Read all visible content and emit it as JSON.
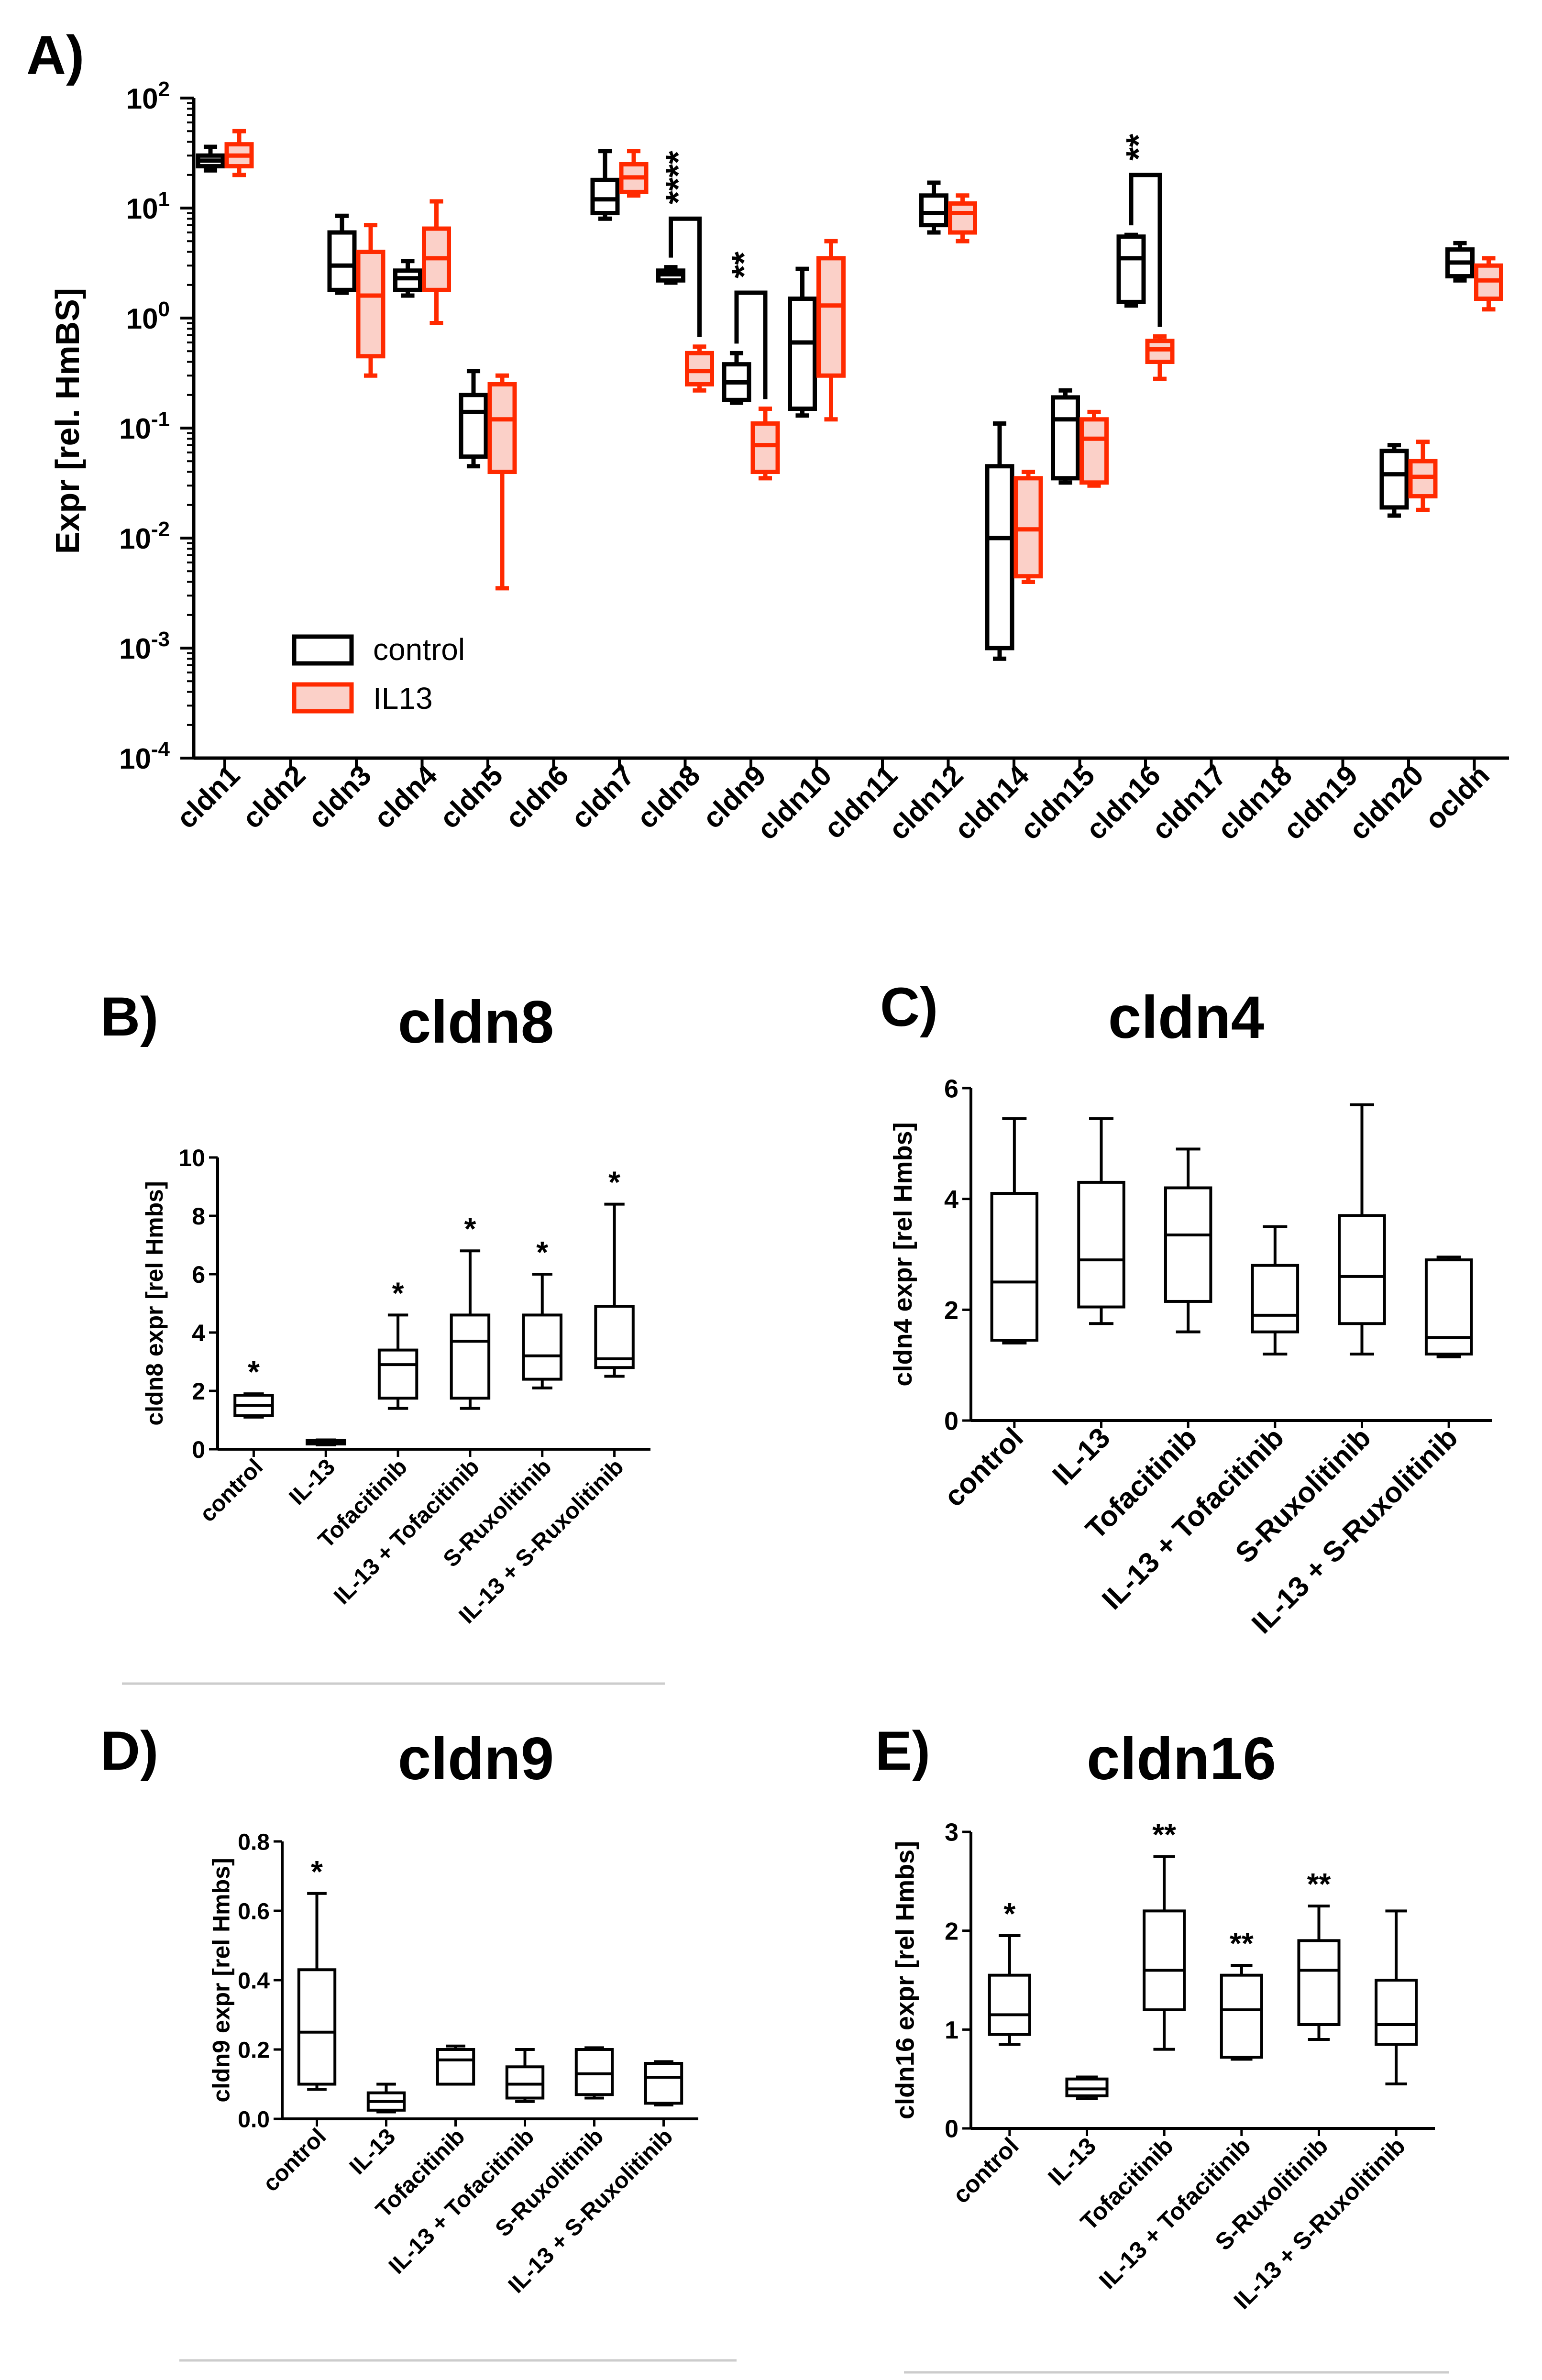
{
  "figure": {
    "background": "#ffffff"
  },
  "chart_data": [
    {
      "id": "A",
      "panel_label": "A)",
      "type": "box",
      "title": "",
      "ylabel": "Expr [rel. HmBS]",
      "yscale": "log",
      "ylim": [
        0.0001,
        100
      ],
      "yticks": [
        {
          "value": 100,
          "base": "10",
          "exp": "2"
        },
        {
          "value": 10,
          "base": "10",
          "exp": "1"
        },
        {
          "value": 1,
          "base": "10",
          "exp": "0"
        },
        {
          "value": 0.1,
          "base": "10",
          "exp": "-1"
        },
        {
          "value": 0.01,
          "base": "10",
          "exp": "-2"
        },
        {
          "value": 0.001,
          "base": "10",
          "exp": "-3"
        },
        {
          "value": 0.0001,
          "base": "10",
          "exp": "-4"
        }
      ],
      "categories": [
        "cldn1",
        "cldn2",
        "cldn3",
        "cldn4",
        "cldn5",
        "cldn6",
        "cldn7",
        "cldn8",
        "cldn9",
        "cldn10",
        "cldn11",
        "cldn12",
        "cldn14",
        "cldn15",
        "cldn16",
        "cldn17",
        "cldn18",
        "cldn19",
        "cldn20",
        "ocldn"
      ],
      "legend": {
        "position": "bottom-left",
        "entries": [
          {
            "name": "control",
            "stroke": "#000000",
            "fill": "#ffffff"
          },
          {
            "name": "IL13",
            "stroke": "#ff2a00",
            "fill": "#fbd0c8"
          }
        ]
      },
      "series": [
        {
          "name": "control",
          "stroke": "#000000",
          "fill": "#ffffff",
          "boxes": [
            {
              "category": "cldn1",
              "min": 22,
              "q1": 24,
              "median": 27,
              "q3": 30,
              "max": 36
            },
            {
              "category": "cldn3",
              "min": 1.7,
              "q1": 1.8,
              "median": 3,
              "q3": 6,
              "max": 8.5
            },
            {
              "category": "cldn4",
              "min": 1.6,
              "q1": 1.8,
              "median": 2.3,
              "q3": 2.7,
              "max": 3.3
            },
            {
              "category": "cldn5",
              "min": 0.045,
              "q1": 0.055,
              "median": 0.14,
              "q3": 0.2,
              "max": 0.33
            },
            {
              "category": "cldn7",
              "min": 8,
              "q1": 9,
              "median": 12,
              "q3": 18,
              "max": 33
            },
            {
              "category": "cldn8",
              "min": 2.1,
              "q1": 2.2,
              "median": 2.5,
              "q3": 2.7,
              "max": 2.9
            },
            {
              "category": "cldn9",
              "min": 0.17,
              "q1": 0.18,
              "median": 0.26,
              "q3": 0.38,
              "max": 0.48
            },
            {
              "category": "cldn10",
              "min": 0.13,
              "q1": 0.15,
              "median": 0.6,
              "q3": 1.5,
              "max": 2.8
            },
            {
              "category": "cldn12",
              "min": 6,
              "q1": 7,
              "median": 9,
              "q3": 13,
              "max": 17
            },
            {
              "category": "cldn14",
              "min": 0.0008,
              "q1": 0.001,
              "median": 0.01,
              "q3": 0.045,
              "max": 0.11
            },
            {
              "category": "cldn15",
              "min": 0.032,
              "q1": 0.035,
              "median": 0.12,
              "q3": 0.19,
              "max": 0.22
            },
            {
              "category": "cldn16",
              "min": 1.3,
              "q1": 1.4,
              "median": 3.5,
              "q3": 5.5,
              "max": 5.7
            },
            {
              "category": "cldn20",
              "min": 0.016,
              "q1": 0.019,
              "median": 0.038,
              "q3": 0.062,
              "max": 0.07
            },
            {
              "category": "ocldn",
              "min": 2.2,
              "q1": 2.4,
              "median": 3.2,
              "q3": 4.2,
              "max": 4.8
            }
          ]
        },
        {
          "name": "IL13",
          "stroke": "#ff2a00",
          "fill": "#fbd0c8",
          "boxes": [
            {
              "category": "cldn1",
              "min": 20,
              "q1": 24,
              "median": 30,
              "q3": 38,
              "max": 50
            },
            {
              "category": "cldn3",
              "min": 0.3,
              "q1": 0.45,
              "median": 1.6,
              "q3": 4,
              "max": 7
            },
            {
              "category": "cldn4",
              "min": 0.9,
              "q1": 1.8,
              "median": 3.5,
              "q3": 6.5,
              "max": 11.5
            },
            {
              "category": "cldn5",
              "min": 0.0035,
              "q1": 0.04,
              "median": 0.12,
              "q3": 0.25,
              "max": 0.3
            },
            {
              "category": "cldn7",
              "min": 13,
              "q1": 14,
              "median": 19,
              "q3": 25,
              "max": 33
            },
            {
              "category": "cldn8",
              "min": 0.22,
              "q1": 0.25,
              "median": 0.33,
              "q3": 0.48,
              "max": 0.55
            },
            {
              "category": "cldn9",
              "min": 0.035,
              "q1": 0.04,
              "median": 0.07,
              "q3": 0.11,
              "max": 0.15
            },
            {
              "category": "cldn10",
              "min": 0.12,
              "q1": 0.3,
              "median": 1.3,
              "q3": 3.5,
              "max": 5
            },
            {
              "category": "cldn12",
              "min": 5,
              "q1": 6,
              "median": 9,
              "q3": 11,
              "max": 13
            },
            {
              "category": "cldn14",
              "min": 0.004,
              "q1": 0.0045,
              "median": 0.012,
              "q3": 0.035,
              "max": 0.04
            },
            {
              "category": "cldn15",
              "min": 0.03,
              "q1": 0.032,
              "median": 0.08,
              "q3": 0.12,
              "max": 0.14
            },
            {
              "category": "cldn16",
              "min": 0.28,
              "q1": 0.4,
              "median": 0.52,
              "q3": 0.62,
              "max": 0.68
            },
            {
              "category": "cldn20",
              "min": 0.018,
              "q1": 0.024,
              "median": 0.036,
              "q3": 0.05,
              "max": 0.075
            },
            {
              "category": "ocldn",
              "min": 1.2,
              "q1": 1.5,
              "median": 2.2,
              "q3": 3,
              "max": 3.5
            }
          ]
        }
      ],
      "annotations": [
        {
          "category": "cldn8",
          "text": "****",
          "y_value": 8
        },
        {
          "category": "cldn9",
          "text": "**",
          "y_value": 1.7
        },
        {
          "category": "cldn16",
          "text": "**",
          "y_value": 20
        }
      ]
    },
    {
      "id": "B",
      "panel_label": "B)",
      "type": "box",
      "title": "cldn8",
      "ylabel": "cldn8 expr [rel Hmbs]",
      "ylim": [
        0,
        10
      ],
      "yticks": [
        0,
        2,
        4,
        6,
        8,
        10
      ],
      "categories": [
        "control",
        "IL-13",
        "Tofacitinib",
        "IL-13 + Tofacitinib",
        "S-Ruxolitinib",
        "IL-13 + S-Ruxolitinib"
      ],
      "boxes": [
        {
          "category": "control",
          "min": 1.1,
          "q1": 1.15,
          "median": 1.5,
          "q3": 1.85,
          "max": 1.9,
          "annotation": "*"
        },
        {
          "category": "IL-13",
          "min": 0.15,
          "q1": 0.18,
          "median": 0.25,
          "q3": 0.3,
          "max": 0.32,
          "annotation": ""
        },
        {
          "category": "Tofacitinib",
          "min": 1.4,
          "q1": 1.75,
          "median": 2.9,
          "q3": 3.4,
          "max": 4.6,
          "annotation": "*"
        },
        {
          "category": "IL-13 + Tofacitinib",
          "min": 1.4,
          "q1": 1.75,
          "median": 3.7,
          "q3": 4.6,
          "max": 6.8,
          "annotation": "*"
        },
        {
          "category": "S-Ruxolitinib",
          "min": 2.1,
          "q1": 2.4,
          "median": 3.2,
          "q3": 4.6,
          "max": 6.0,
          "annotation": "*"
        },
        {
          "category": "IL-13 + S-Ruxolitinib",
          "min": 2.5,
          "q1": 2.8,
          "median": 3.1,
          "q3": 4.9,
          "max": 8.4,
          "annotation": "*"
        }
      ]
    },
    {
      "id": "C",
      "panel_label": "C)",
      "type": "box",
      "title": "cldn4",
      "ylabel": "cldn4 expr [rel Hmbs]",
      "ylim": [
        0,
        6
      ],
      "yticks": [
        0,
        2,
        4,
        6
      ],
      "categories": [
        "control",
        "IL-13",
        "Tofacitinib",
        "IL-13 + Tofacitinib",
        "S-Ruxolitinib",
        "IL-13 + S-Ruxolitinib"
      ],
      "boxes": [
        {
          "category": "control",
          "min": 1.4,
          "q1": 1.45,
          "median": 2.5,
          "q3": 4.1,
          "max": 5.45,
          "annotation": ""
        },
        {
          "category": "IL-13",
          "min": 1.75,
          "q1": 2.05,
          "median": 2.9,
          "q3": 4.3,
          "max": 5.45,
          "annotation": ""
        },
        {
          "category": "Tofacitinib",
          "min": 1.6,
          "q1": 2.15,
          "median": 3.35,
          "q3": 4.2,
          "max": 4.9,
          "annotation": ""
        },
        {
          "category": "IL-13 + Tofacitinib",
          "min": 1.2,
          "q1": 1.6,
          "median": 1.9,
          "q3": 2.8,
          "max": 3.5,
          "annotation": ""
        },
        {
          "category": "S-Ruxolitinib",
          "min": 1.2,
          "q1": 1.75,
          "median": 2.6,
          "q3": 3.7,
          "max": 5.7,
          "annotation": ""
        },
        {
          "category": "IL-13 + S-Ruxolitinib",
          "min": 1.15,
          "q1": 1.2,
          "median": 1.5,
          "q3": 2.9,
          "max": 2.95,
          "annotation": ""
        }
      ]
    },
    {
      "id": "D",
      "panel_label": "D)",
      "type": "box",
      "title": "cldn9",
      "ylabel": "cldn9 expr [rel Hmbs]",
      "ylim": [
        0,
        0.8
      ],
      "yticks": [
        0.0,
        0.2,
        0.4,
        0.6,
        0.8
      ],
      "ytick_labels": [
        "0.0",
        "0.2",
        "0.4",
        "0.6",
        "0.8"
      ],
      "categories": [
        "control",
        "IL-13",
        "Tofacitinib",
        "IL-13 + Tofacitinib",
        "S-Ruxolitinib",
        "IL-13 + S-Ruxolitinib"
      ],
      "boxes": [
        {
          "category": "control",
          "min": 0.085,
          "q1": 0.1,
          "median": 0.25,
          "q3": 0.43,
          "max": 0.65,
          "annotation": "*"
        },
        {
          "category": "IL-13",
          "min": 0.02,
          "q1": 0.025,
          "median": 0.05,
          "q3": 0.075,
          "max": 0.1,
          "annotation": ""
        },
        {
          "category": "Tofacitinib",
          "min": 0.1,
          "q1": 0.1,
          "median": 0.17,
          "q3": 0.2,
          "max": 0.21,
          "annotation": ""
        },
        {
          "category": "IL-13 + Tofacitinib",
          "min": 0.05,
          "q1": 0.06,
          "median": 0.1,
          "q3": 0.15,
          "max": 0.2,
          "annotation": ""
        },
        {
          "category": "S-Ruxolitinib",
          "min": 0.06,
          "q1": 0.07,
          "median": 0.13,
          "q3": 0.2,
          "max": 0.205,
          "annotation": ""
        },
        {
          "category": "IL-13 + S-Ruxolitinib",
          "min": 0.04,
          "q1": 0.045,
          "median": 0.12,
          "q3": 0.16,
          "max": 0.165,
          "annotation": ""
        }
      ]
    },
    {
      "id": "E",
      "panel_label": "E)",
      "type": "box",
      "title": "cldn16",
      "ylabel": "cldn16 expr [rel Hmbs]",
      "ylim": [
        0,
        3
      ],
      "yticks": [
        0,
        1,
        2,
        3
      ],
      "categories": [
        "control",
        "IL-13",
        "Tofacitinib",
        "IL-13 + Tofacitinib",
        "S-Ruxolitinib",
        "IL-13 + S-Ruxolitinib"
      ],
      "boxes": [
        {
          "category": "control",
          "min": 0.85,
          "q1": 0.95,
          "median": 1.15,
          "q3": 1.55,
          "max": 1.95,
          "annotation": "*"
        },
        {
          "category": "IL-13",
          "min": 0.3,
          "q1": 0.33,
          "median": 0.4,
          "q3": 0.5,
          "max": 0.52,
          "annotation": ""
        },
        {
          "category": "Tofacitinib",
          "min": 0.8,
          "q1": 1.2,
          "median": 1.6,
          "q3": 2.2,
          "max": 2.75,
          "annotation": "**"
        },
        {
          "category": "IL-13 + Tofacitinib",
          "min": 0.7,
          "q1": 0.72,
          "median": 1.2,
          "q3": 1.55,
          "max": 1.65,
          "annotation": "**"
        },
        {
          "category": "S-Ruxolitinib",
          "min": 0.9,
          "q1": 1.05,
          "median": 1.6,
          "q3": 1.9,
          "max": 2.25,
          "annotation": "**"
        },
        {
          "category": "IL-13 + S-Ruxolitinib",
          "min": 0.45,
          "q1": 0.85,
          "median": 1.05,
          "q3": 1.5,
          "max": 2.2,
          "annotation": ""
        }
      ]
    }
  ]
}
